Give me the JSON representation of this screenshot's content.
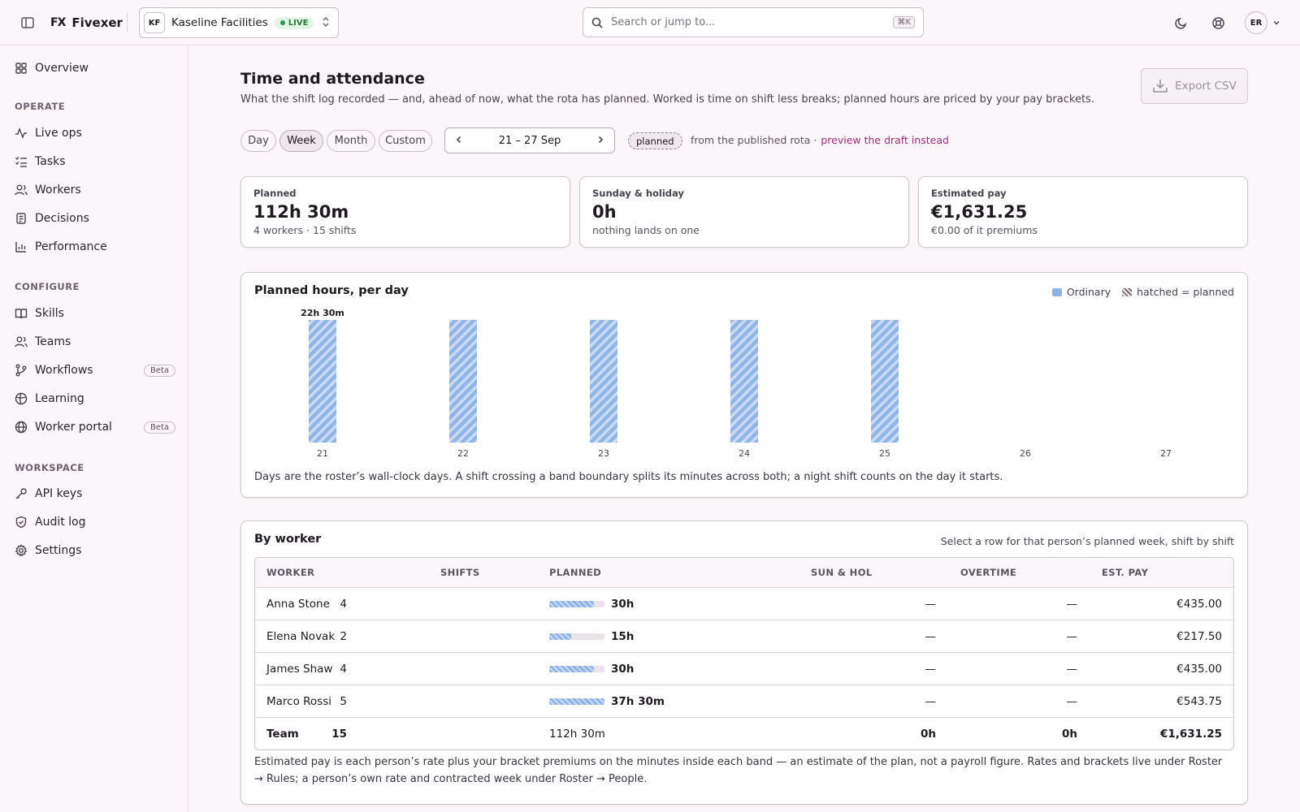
{
  "app": {
    "brand_mark": "FX",
    "brand_name": "Fivexer"
  },
  "org": {
    "initials": "KF",
    "name": "Kaseline Facilities",
    "status": "LIVE"
  },
  "search": {
    "placeholder": "Search or jump to...",
    "shortcut": "⌘K"
  },
  "user": {
    "initials": "ER"
  },
  "sidebar": {
    "top": [
      {
        "label": "Overview"
      }
    ],
    "operate_title": "OPERATE",
    "operate": [
      {
        "label": "Live ops"
      },
      {
        "label": "Tasks"
      },
      {
        "label": "Workers"
      },
      {
        "label": "Decisions"
      },
      {
        "label": "Performance"
      }
    ],
    "configure_title": "CONFIGURE",
    "configure": [
      {
        "label": "Skills"
      },
      {
        "label": "Teams"
      },
      {
        "label": "Workflows",
        "badge": "Beta"
      },
      {
        "label": "Learning"
      },
      {
        "label": "Worker portal",
        "badge": "Beta"
      }
    ],
    "workspace_title": "WORKSPACE",
    "workspace": [
      {
        "label": "API keys"
      },
      {
        "label": "Audit log"
      },
      {
        "label": "Settings"
      }
    ]
  },
  "page": {
    "title": "Time and attendance",
    "subtitle": "What the shift log recorded — and, ahead of now, what the rota has planned. Worked is time on shift less breaks; planned hours are priced by your pay brackets.",
    "export_label": "Export CSV"
  },
  "filters": {
    "periods": [
      "Day",
      "Week",
      "Month",
      "Custom"
    ],
    "active_period": "Week",
    "range_label": "21 – 27 Sep",
    "mode_pill": "planned",
    "rota_note": "from the published rota ·",
    "draft_link": "preview the draft instead"
  },
  "stats": [
    {
      "label": "Planned",
      "value": "112h 30m",
      "sub": "4 workers · 15 shifts"
    },
    {
      "label": "Sunday & holiday",
      "value": "0h",
      "sub": "nothing lands on one"
    },
    {
      "label": "Estimated pay",
      "value": "€1,631.25",
      "sub": "€0.00 of it premiums"
    }
  ],
  "chart_data": {
    "type": "bar",
    "title": "Planned hours, per day",
    "categories": [
      "21",
      "22",
      "23",
      "24",
      "25",
      "26",
      "27"
    ],
    "series": [
      {
        "name": "Ordinary",
        "values": [
          22.5,
          22.5,
          22.5,
          22.5,
          22.5,
          0,
          0
        ]
      }
    ],
    "data_labels": [
      "22h 30m",
      "",
      "",
      "",
      "",
      "",
      ""
    ],
    "legend": [
      "Ordinary",
      "hatched = planned"
    ],
    "legend_position": "top-right",
    "ylim": [
      0,
      22.5
    ],
    "grid": false,
    "colors": {
      "ordinary": "#8fb4e6"
    },
    "footnote": "Days are the roster’s wall-clock days. A shift crossing a band boundary splits its minutes across both; a night shift counts on the day it starts."
  },
  "workers": {
    "title": "By worker",
    "hint": "Select a row for that person’s planned week, shift by shift",
    "columns": [
      "WORKER",
      "SHIFTS",
      "PLANNED",
      "SUN & HOL",
      "OVERTIME",
      "EST. PAY"
    ],
    "rows": [
      {
        "name": "Anna Stone",
        "shifts": "4",
        "planned": "30h",
        "planned_fraction": 0.81,
        "sun_hol": "—",
        "overtime": "—",
        "pay": "€435.00"
      },
      {
        "name": "Elena Novak",
        "shifts": "2",
        "planned": "15h",
        "planned_fraction": 0.4,
        "sun_hol": "—",
        "overtime": "—",
        "pay": "€217.50"
      },
      {
        "name": "James Shaw",
        "shifts": "4",
        "planned": "30h",
        "planned_fraction": 0.81,
        "sun_hol": "—",
        "overtime": "—",
        "pay": "€435.00"
      },
      {
        "name": "Marco Rossi",
        "shifts": "5",
        "planned": "37h 30m",
        "planned_fraction": 1.0,
        "sun_hol": "—",
        "overtime": "—",
        "pay": "€543.75"
      }
    ],
    "total": {
      "name": "Team",
      "shifts": "15",
      "planned": "112h 30m",
      "sun_hol": "0h",
      "overtime": "0h",
      "pay": "€1,631.25"
    },
    "footnote": "Estimated pay is each person’s rate plus your bracket premiums on the minutes inside each band — an estimate of the plan, not a payroll figure. Rates and brackets live under Roster → Rules; a person’s own rate and contracted week under Roster → People."
  }
}
